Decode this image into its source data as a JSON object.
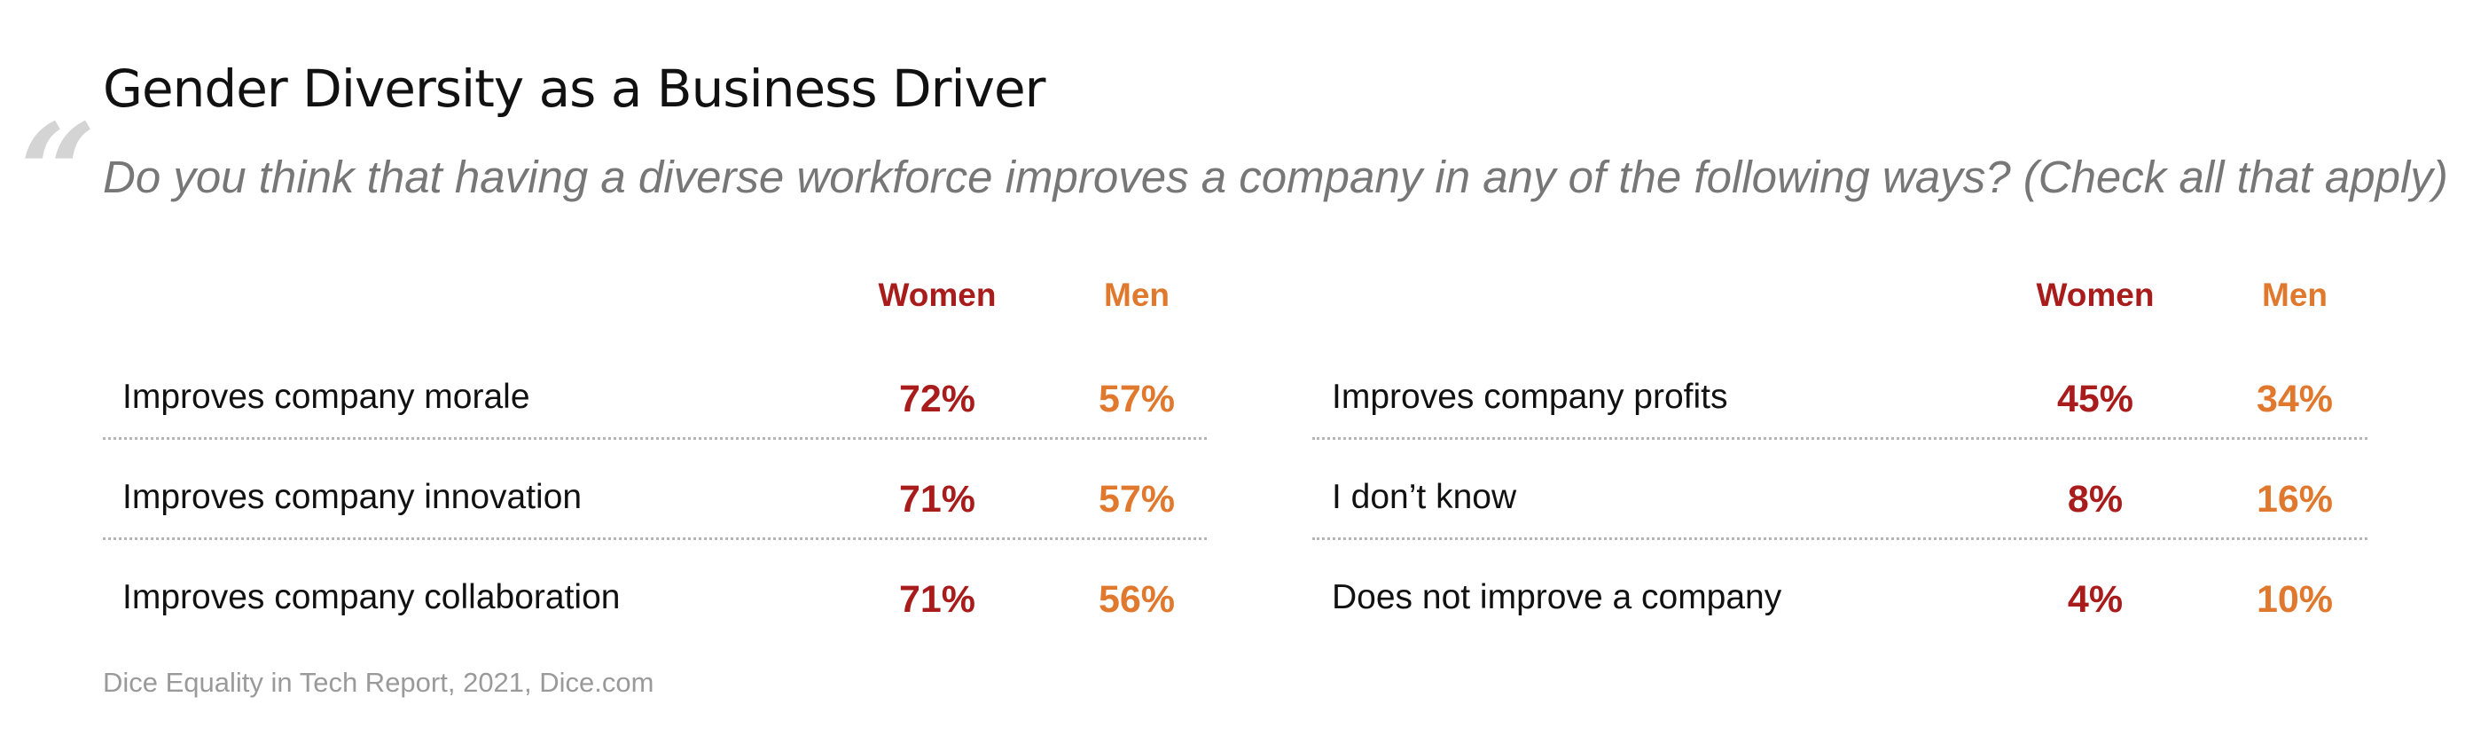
{
  "title": "Gender Diversity as a Business Driver",
  "question": "Do you think that having a diverse workforce improves a company in any of the following ways? (Check all that apply)",
  "source": "Dice Equality in Tech Report, 2021, Dice.com",
  "colors": {
    "women": "#a81c1c",
    "men": "#e0792e",
    "quote_mark": "#d4d4d4"
  },
  "icons": {
    "quote_mark": "quote-mark-icon"
  },
  "chart_data": {
    "type": "table",
    "title": "Gender Diversity as a Business Driver",
    "columns": [
      "Women",
      "Men"
    ],
    "panels": [
      {
        "rows": [
          {
            "label": "Improves company morale",
            "women": "72%",
            "men": "57%"
          },
          {
            "label": "Improves company innovation",
            "women": "71%",
            "men": "57%"
          },
          {
            "label": "Improves company collaboration",
            "women": "71%",
            "men": "56%"
          }
        ]
      },
      {
        "rows": [
          {
            "label": "Improves company profits",
            "women": "45%",
            "men": "34%"
          },
          {
            "label": "I don’t know",
            "women": "8%",
            "men": "16%"
          },
          {
            "label": "Does not improve a company",
            "women": "4%",
            "men": "10%"
          }
        ]
      }
    ]
  }
}
